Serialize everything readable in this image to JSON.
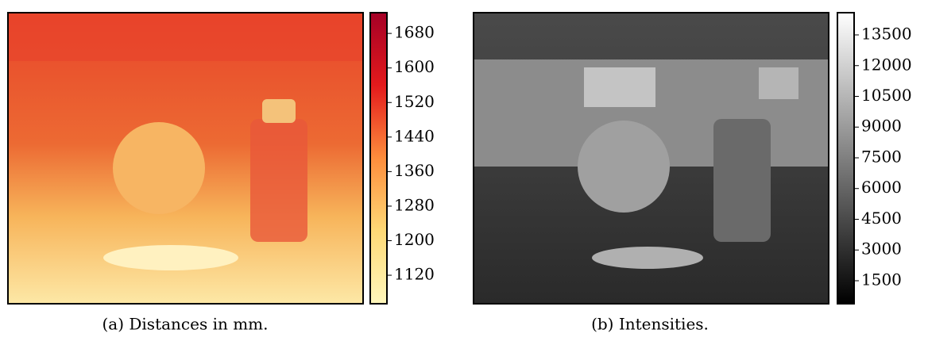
{
  "panels": [
    {
      "caption": "(a) Distances in mm.",
      "colorbar": {
        "lim": [
          1054,
          1728
        ],
        "ticks": [
          1120,
          1200,
          1280,
          1360,
          1440,
          1520,
          1600,
          1680
        ],
        "colors": [
          "#fff7bc",
          "#fed976",
          "#fd8d3c",
          "#e31a1c",
          "#a50026"
        ]
      }
    },
    {
      "caption": "(b) Intensities.",
      "colorbar": {
        "lim": [
          377,
          14584
        ],
        "ticks": [
          1500,
          3000,
          4500,
          6000,
          7500,
          9000,
          10500,
          12000,
          13500
        ],
        "colors": [
          "#000000",
          "#ffffff"
        ]
      }
    }
  ]
}
